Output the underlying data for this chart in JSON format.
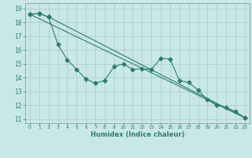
{
  "title": "",
  "xlabel": "Humidex (Indice chaleur)",
  "ylabel": "",
  "background_color": "#c8e8e8",
  "grid_color": "#b0cccc",
  "line_color": "#2e7d6e",
  "xlim": [
    -0.5,
    23.5
  ],
  "ylim": [
    10.7,
    19.4
  ],
  "yticks": [
    11,
    12,
    13,
    14,
    15,
    16,
    17,
    18,
    19
  ],
  "xticks": [
    0,
    1,
    2,
    3,
    4,
    5,
    6,
    7,
    8,
    9,
    10,
    11,
    12,
    13,
    14,
    15,
    16,
    17,
    18,
    19,
    20,
    21,
    22,
    23
  ],
  "series1_x": [
    0,
    1,
    2,
    3,
    4,
    5,
    6,
    7,
    8,
    9,
    10,
    11,
    12,
    13,
    14,
    15,
    16,
    17,
    18,
    19,
    20,
    21,
    22,
    23
  ],
  "series1_y": [
    18.6,
    18.65,
    18.4,
    16.4,
    15.3,
    14.6,
    13.9,
    13.6,
    13.8,
    14.8,
    15.0,
    14.6,
    14.65,
    14.6,
    15.4,
    15.35,
    13.8,
    13.65,
    13.1,
    12.4,
    12.0,
    11.85,
    11.55,
    11.1
  ],
  "series2_x": [
    0,
    1,
    2,
    23
  ],
  "series2_y": [
    18.6,
    18.65,
    18.4,
    11.1
  ],
  "series3_x": [
    0,
    23
  ],
  "series3_y": [
    18.6,
    11.1
  ]
}
